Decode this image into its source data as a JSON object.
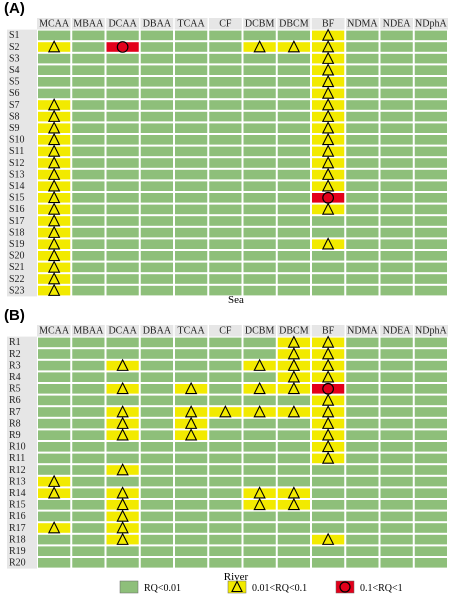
{
  "chart_data": [
    {
      "type": "heatmap",
      "panel_label": "(A)",
      "xlabel": "Sea",
      "columns": [
        "MCAA",
        "MBAA",
        "DCAA",
        "DBAA",
        "TCAA",
        "CF",
        "DCBM",
        "DBCM",
        "BF",
        "NDMA",
        "NDEA",
        "NDphA"
      ],
      "rows": [
        "S1",
        "S2",
        "S3",
        "S4",
        "S5",
        "S6",
        "S7",
        "S8",
        "S9",
        "S10",
        "S11",
        "S12",
        "S13",
        "S14",
        "S15",
        "S16",
        "S17",
        "S18",
        "S19",
        "S20",
        "S21",
        "S22",
        "S23"
      ],
      "levels": [
        [
          0,
          0,
          0,
          0,
          0,
          0,
          0,
          0,
          1,
          0,
          0,
          0
        ],
        [
          1,
          0,
          2,
          0,
          0,
          0,
          1,
          1,
          1,
          0,
          0,
          0
        ],
        [
          0,
          0,
          0,
          0,
          0,
          0,
          0,
          0,
          1,
          0,
          0,
          0
        ],
        [
          0,
          0,
          0,
          0,
          0,
          0,
          0,
          0,
          1,
          0,
          0,
          0
        ],
        [
          0,
          0,
          0,
          0,
          0,
          0,
          0,
          0,
          1,
          0,
          0,
          0
        ],
        [
          0,
          0,
          0,
          0,
          0,
          0,
          0,
          0,
          1,
          0,
          0,
          0
        ],
        [
          1,
          0,
          0,
          0,
          0,
          0,
          0,
          0,
          1,
          0,
          0,
          0
        ],
        [
          1,
          0,
          0,
          0,
          0,
          0,
          0,
          0,
          1,
          0,
          0,
          0
        ],
        [
          1,
          0,
          0,
          0,
          0,
          0,
          0,
          0,
          1,
          0,
          0,
          0
        ],
        [
          1,
          0,
          0,
          0,
          0,
          0,
          0,
          0,
          1,
          0,
          0,
          0
        ],
        [
          1,
          0,
          0,
          0,
          0,
          0,
          0,
          0,
          1,
          0,
          0,
          0
        ],
        [
          1,
          0,
          0,
          0,
          0,
          0,
          0,
          0,
          1,
          0,
          0,
          0
        ],
        [
          1,
          0,
          0,
          0,
          0,
          0,
          0,
          0,
          1,
          0,
          0,
          0
        ],
        [
          1,
          0,
          0,
          0,
          0,
          0,
          0,
          0,
          1,
          0,
          0,
          0
        ],
        [
          1,
          0,
          0,
          0,
          0,
          0,
          0,
          0,
          2,
          0,
          0,
          0
        ],
        [
          1,
          0,
          0,
          0,
          0,
          0,
          0,
          0,
          1,
          0,
          0,
          0
        ],
        [
          1,
          0,
          0,
          0,
          0,
          0,
          0,
          0,
          0,
          0,
          0,
          0
        ],
        [
          1,
          0,
          0,
          0,
          0,
          0,
          0,
          0,
          0,
          0,
          0,
          0
        ],
        [
          1,
          0,
          0,
          0,
          0,
          0,
          0,
          0,
          1,
          0,
          0,
          0
        ],
        [
          1,
          0,
          0,
          0,
          0,
          0,
          0,
          0,
          0,
          0,
          0,
          0
        ],
        [
          1,
          0,
          0,
          0,
          0,
          0,
          0,
          0,
          0,
          0,
          0,
          0
        ],
        [
          1,
          0,
          0,
          0,
          0,
          0,
          0,
          0,
          0,
          0,
          0,
          0
        ],
        [
          1,
          0,
          0,
          0,
          0,
          0,
          0,
          0,
          0,
          0,
          0,
          0
        ]
      ]
    },
    {
      "type": "heatmap",
      "panel_label": "(B)",
      "xlabel": "River",
      "columns": [
        "MCAA",
        "MBAA",
        "DCAA",
        "DBAA",
        "TCAA",
        "CF",
        "DCBM",
        "DBCM",
        "BF",
        "NDMA",
        "NDEA",
        "NDphA"
      ],
      "rows": [
        "R1",
        "R2",
        "R3",
        "R4",
        "R5",
        "R6",
        "R7",
        "R8",
        "R9",
        "R10",
        "R11",
        "R12",
        "R13",
        "R14",
        "R15",
        "R16",
        "R17",
        "R18",
        "R19",
        "R20"
      ],
      "levels": [
        [
          0,
          0,
          0,
          0,
          0,
          0,
          0,
          1,
          1,
          0,
          0,
          0
        ],
        [
          0,
          0,
          0,
          0,
          0,
          0,
          0,
          1,
          1,
          0,
          0,
          0
        ],
        [
          0,
          0,
          1,
          0,
          0,
          0,
          1,
          1,
          1,
          0,
          0,
          0
        ],
        [
          0,
          0,
          0,
          0,
          0,
          0,
          0,
          1,
          1,
          0,
          0,
          0
        ],
        [
          0,
          0,
          1,
          0,
          1,
          0,
          1,
          1,
          2,
          0,
          0,
          0
        ],
        [
          0,
          0,
          0,
          0,
          0,
          0,
          0,
          0,
          1,
          0,
          0,
          0
        ],
        [
          0,
          0,
          1,
          0,
          1,
          1,
          1,
          1,
          1,
          0,
          0,
          0
        ],
        [
          0,
          0,
          1,
          0,
          1,
          0,
          0,
          0,
          1,
          0,
          0,
          0
        ],
        [
          0,
          0,
          1,
          0,
          1,
          0,
          0,
          0,
          1,
          0,
          0,
          0
        ],
        [
          0,
          0,
          0,
          0,
          0,
          0,
          0,
          0,
          1,
          0,
          0,
          0
        ],
        [
          0,
          0,
          0,
          0,
          0,
          0,
          0,
          0,
          1,
          0,
          0,
          0
        ],
        [
          0,
          0,
          1,
          0,
          0,
          0,
          0,
          0,
          0,
          0,
          0,
          0
        ],
        [
          1,
          0,
          0,
          0,
          0,
          0,
          0,
          0,
          0,
          0,
          0,
          0
        ],
        [
          1,
          0,
          1,
          0,
          0,
          0,
          1,
          1,
          0,
          0,
          0,
          0
        ],
        [
          0,
          0,
          1,
          0,
          0,
          0,
          1,
          1,
          0,
          0,
          0,
          0
        ],
        [
          0,
          0,
          1,
          0,
          0,
          0,
          0,
          0,
          0,
          0,
          0,
          0
        ],
        [
          1,
          0,
          1,
          0,
          0,
          0,
          0,
          0,
          0,
          0,
          0,
          0
        ],
        [
          0,
          0,
          1,
          0,
          0,
          0,
          0,
          0,
          1,
          0,
          0,
          0
        ],
        [
          0,
          0,
          0,
          0,
          0,
          0,
          0,
          0,
          0,
          0,
          0,
          0
        ],
        [
          0,
          0,
          0,
          0,
          0,
          0,
          0,
          0,
          0,
          0,
          0,
          0
        ]
      ]
    }
  ],
  "legend": [
    {
      "level": 0,
      "label": "RQ<0.01",
      "color": "#8ebf7a"
    },
    {
      "level": 1,
      "label": "0.01<RQ<0.1",
      "color": "#f2ea00"
    },
    {
      "level": 2,
      "label": "0.1<RQ<1",
      "color": "#e3001b"
    }
  ],
  "colors": {
    "header_bg": "#e6e6e6",
    "cell_border": "#ffffff",
    "marker_stroke": "#000000"
  }
}
